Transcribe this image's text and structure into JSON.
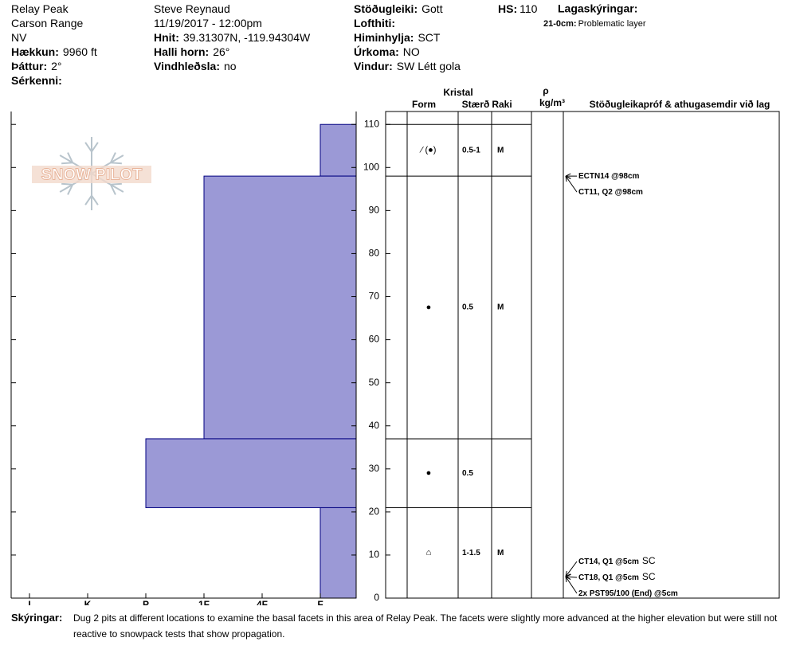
{
  "header": {
    "site": {
      "columns": [
        [
          {
            "text": "Relay Peak"
          },
          {
            "text": "Carson Range"
          },
          {
            "text": "NV"
          },
          {
            "label": "Hækkun:",
            "value": "9960 ft"
          },
          {
            "label": "Þáttur:",
            "value": "2°"
          },
          {
            "label": "Sérkenni:"
          }
        ],
        [
          {
            "text": "Steve Reynaud"
          },
          {
            "text": "11/19/2017 - 12:00pm"
          },
          {
            "label": "Hnit:",
            "value": "39.31307N, -119.94304W"
          },
          {
            "label": "Halli horn:",
            "value": "26°"
          },
          {
            "label": "Vindhleðsla:",
            "value": "no"
          }
        ],
        [
          {
            "label": "Stöðugleiki:",
            "value": "Gott"
          },
          {
            "label": "Lofthiti:"
          },
          {
            "label": "Himinhylja:",
            "value": "SCT"
          },
          {
            "label": "Úrkoma:",
            "value": "NO"
          },
          {
            "label": "Vindur:",
            "value": "SW Létt gola"
          }
        ]
      ]
    },
    "hs": {
      "label": "HS:",
      "value": 110
    },
    "legend": {
      "title": "Lagaskýringar:",
      "range": "21-0cm:",
      "text": "Problematic layer"
    }
  },
  "chart_data": {
    "type": "snow-profile",
    "logo": "SNOW PILOT",
    "hardness_scale": [
      "I",
      "K",
      "P",
      "1F",
      "4F",
      "F"
    ],
    "ylim": [
      0,
      113
    ],
    "yticks": [
      0,
      10,
      20,
      30,
      40,
      50,
      60,
      70,
      80,
      90,
      100,
      110
    ],
    "bar_color": "#9b99d6",
    "edge_color": "#000080",
    "columns": {
      "crystal": "Kristal",
      "form": "Form",
      "size": "Stærð",
      "moisture": "Raki",
      "density": "ρ",
      "density_unit": "kg/m³",
      "tests": "Stöðugleikapróf & athugasemdir við lag"
    },
    "layers": [
      {
        "top": 110,
        "bottom": 98,
        "hardness": "F",
        "form": "⁄ (●)",
        "size": "0.5-1",
        "moisture": "M"
      },
      {
        "top": 98,
        "bottom": 37,
        "hardness": "1F",
        "form": "●",
        "size": "0.5",
        "moisture": "M"
      },
      {
        "top": 37,
        "bottom": 21,
        "hardness": "P",
        "form": "●",
        "size": "0.5"
      },
      {
        "top": 21,
        "bottom": 0,
        "hardness": "F",
        "form": "⌂",
        "size": "1-1.5",
        "moisture": "M"
      }
    ],
    "tests": [
      {
        "label": "ECTN14 @98cm",
        "depth": 98
      },
      {
        "label": "CT11, Q2 @98cm",
        "depth": 98
      },
      {
        "label": "CT14, Q1 @5cm",
        "fracture": "SC",
        "depth": 5
      },
      {
        "label": "CT18, Q1 @5cm",
        "fracture": "SC",
        "depth": 5
      },
      {
        "label": "2x PST95/100 (End) @5cm",
        "depth": 5
      }
    ]
  },
  "notes": {
    "label": "Skýringar:",
    "text": "Dug 2 pits at different locations to examine the basal facets in this area of Relay Peak.  The facets were slightly more advanced at the higher elevation but were still not reactive to snowpack tests that show propagation."
  }
}
